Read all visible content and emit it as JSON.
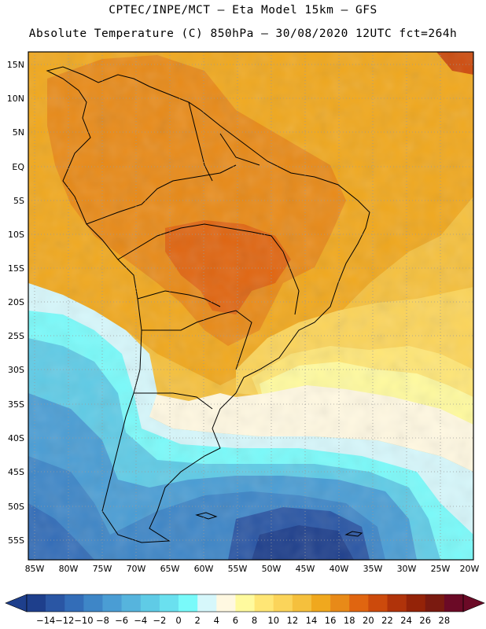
{
  "header": {
    "line1": "CPTEC/INPE/MCT –  Eta Model 15km – GFS",
    "line2": "Absolute Temperature (C) 850hPa – 30/08/2020 12UTC fct=264h"
  },
  "map": {
    "lat_labels": [
      "15N",
      "10N",
      "5N",
      "EQ",
      "5S",
      "10S",
      "15S",
      "20S",
      "25S",
      "30S",
      "35S",
      "40S",
      "45S",
      "50S",
      "55S"
    ],
    "lon_labels": [
      "85W",
      "80W",
      "75W",
      "70W",
      "65W",
      "60W",
      "55W",
      "50W",
      "45W",
      "40W",
      "35W",
      "30W",
      "25W",
      "20W"
    ]
  },
  "colorbar": {
    "colors": [
      "#1e3f8c",
      "#2a56a4",
      "#336db8",
      "#3e86c7",
      "#4a9dd4",
      "#56b4dd",
      "#5fcbe6",
      "#6ae0ef",
      "#79fafa",
      "#d6f7fb",
      "#fff8e1",
      "#fffa9e",
      "#ffe675",
      "#fbd45a",
      "#f5c03d",
      "#f0a81e",
      "#e88a18",
      "#e06510",
      "#cc4a0c",
      "#b0330a",
      "#942308",
      "#7a1a10",
      "#6b0a26"
    ],
    "labels": [
      "-14",
      "-12",
      "-10",
      "-8",
      "-6",
      "-4",
      "-2",
      "0",
      "2",
      "4",
      "6",
      "8",
      "10",
      "12",
      "14",
      "16",
      "18",
      "20",
      "22",
      "24",
      "26",
      "28"
    ],
    "unit": "C"
  }
}
